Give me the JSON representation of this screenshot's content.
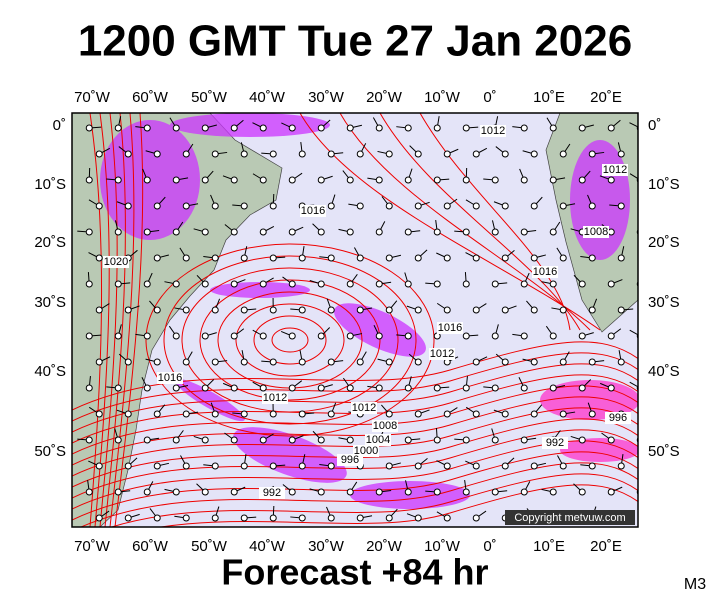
{
  "header": {
    "title": "1200 GMT Tue 27 Jan 2026"
  },
  "footer": {
    "forecast": "Forecast +84 hr",
    "model": "M3"
  },
  "map": {
    "copyright": "Copyright metvuw.com",
    "lon_labels": [
      "70˚W",
      "60˚W",
      "50˚W",
      "40˚W",
      "30˚W",
      "20˚W",
      "10˚W",
      "0˚",
      "10˚E",
      "20˚E"
    ],
    "lat_labels": [
      "0˚",
      "10˚S",
      "20˚S",
      "30˚S",
      "40˚S",
      "50˚S"
    ],
    "isobar_labels": [
      "1012",
      "1016",
      "1020",
      "1016",
      "1012",
      "1012",
      "1008",
      "1004",
      "1000",
      "996",
      "992",
      "992",
      "996",
      "1008",
      "1012",
      "1016",
      "1016",
      "1012"
    ]
  }
}
